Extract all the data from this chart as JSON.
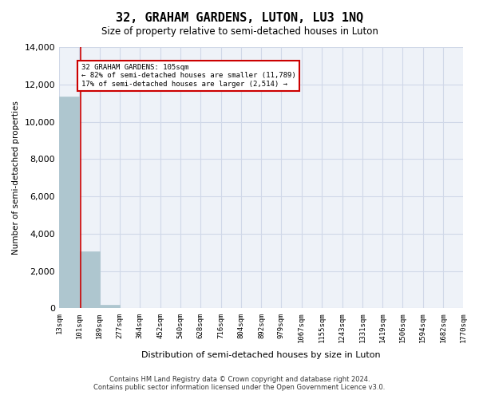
{
  "title": "32, GRAHAM GARDENS, LUTON, LU3 1NQ",
  "subtitle": "Size of property relative to semi-detached houses in Luton",
  "xlabel": "Distribution of semi-detached houses by size in Luton",
  "ylabel": "Number of semi-detached properties",
  "property_size": 105,
  "property_label": "32 GRAHAM GARDENS: 105sqm",
  "pct_smaller": 82,
  "n_smaller": 11789,
  "pct_larger": 17,
  "n_larger": 2514,
  "annotation_line1": "32 GRAHAM GARDENS: 105sqm",
  "annotation_line2": "← 82% of semi-detached houses are smaller (11,789)",
  "annotation_line3": "17% of semi-detached houses are larger (2,514) →",
  "bin_edges": [
    13,
    101,
    189,
    277,
    364,
    452,
    540,
    628,
    716,
    804,
    892,
    979,
    1067,
    1155,
    1243,
    1331,
    1419,
    1506,
    1594,
    1682,
    1770
  ],
  "bin_labels": [
    "13sqm",
    "101sqm",
    "189sqm",
    "277sqm",
    "364sqm",
    "452sqm",
    "540sqm",
    "628sqm",
    "716sqm",
    "804sqm",
    "892sqm",
    "979sqm",
    "1067sqm",
    "1155sqm",
    "1243sqm",
    "1331sqm",
    "1419sqm",
    "1506sqm",
    "1594sqm",
    "1682sqm",
    "1770sqm"
  ],
  "bar_heights": [
    11350,
    3050,
    200,
    0,
    0,
    0,
    0,
    0,
    0,
    0,
    0,
    0,
    0,
    0,
    0,
    0,
    0,
    0,
    0,
    0
  ],
  "bar_color": "#aec6cf",
  "bar_edge_color": "#aec6cf",
  "grid_color": "#d0d8e8",
  "background_color": "#eef2f8",
  "vline_color": "#cc0000",
  "annotation_box_color": "#cc0000",
  "ylim": [
    0,
    14000
  ],
  "yticks": [
    0,
    2000,
    4000,
    6000,
    8000,
    10000,
    12000,
    14000
  ],
  "footer_line1": "Contains HM Land Registry data © Crown copyright and database right 2024.",
  "footer_line2": "Contains public sector information licensed under the Open Government Licence v3.0."
}
